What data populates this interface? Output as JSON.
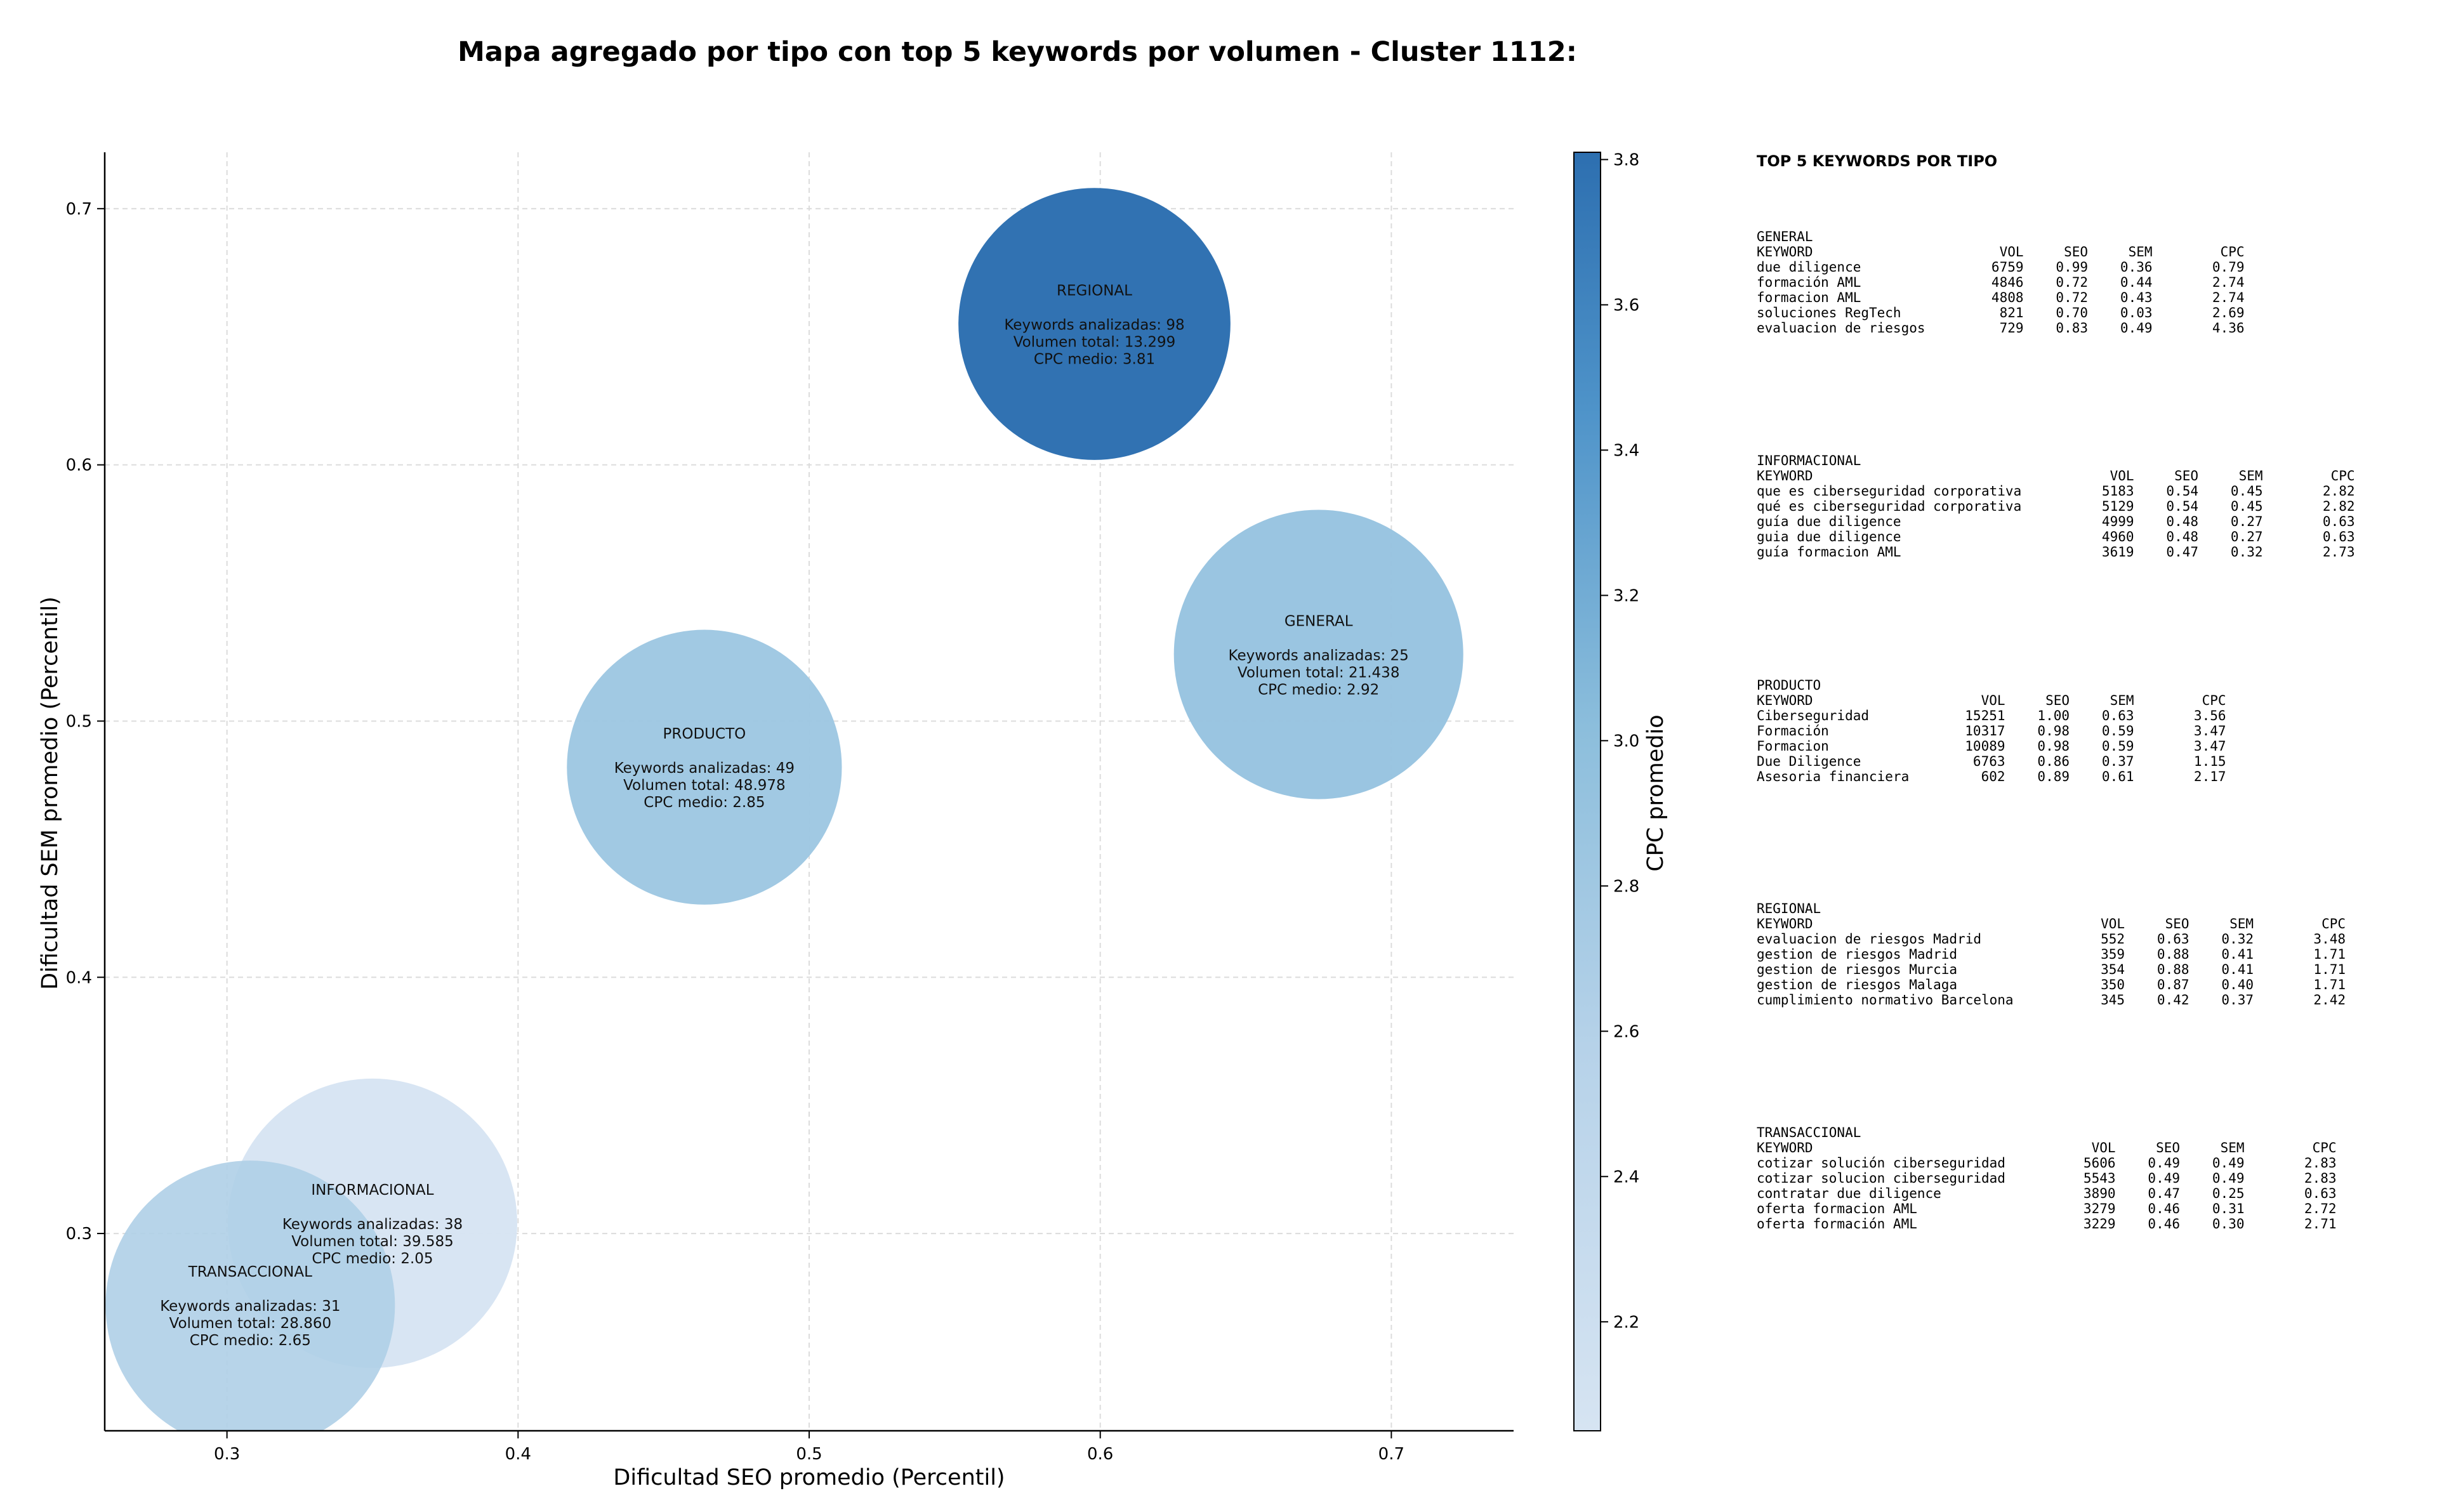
{
  "chart_data": {
    "type": "bubble",
    "title": "Mapa agregado por tipo con top 5 keywords por volumen - Cluster 1112:",
    "xlabel": "Dificultad SEO promedio (Percentil)",
    "ylabel": "Dificultad SEM promedio (Percentil)",
    "xlim": [
      0.258,
      0.742
    ],
    "ylim": [
      0.223,
      0.722
    ],
    "xticks": [
      "0.3",
      "0.4",
      "0.5",
      "0.6",
      "0.7"
    ],
    "yticks": [
      "0.3",
      "0.4",
      "0.5",
      "0.6",
      "0.7"
    ],
    "grid": true,
    "colorbar": {
      "label": "CPC promedio",
      "min": 2.05,
      "max": 3.81,
      "ticks": [
        "2.2",
        "2.4",
        "2.6",
        "2.8",
        "3.0",
        "3.2",
        "3.4",
        "3.6",
        "3.8"
      ],
      "color_low": "#d6e4f2",
      "color_high": "#2d6fb0"
    },
    "bubble_lines": [
      "Keywords analizadas: {k}",
      "Volumen total: {v}",
      "CPC medio: {c}"
    ],
    "bubbles": [
      {
        "name": "INFORMACIONAL",
        "x": 0.35,
        "y": 0.304,
        "keywords": 38,
        "volumen": "39.585",
        "cpc": 2.05,
        "cpc_text": "2.05",
        "size": 1.0,
        "alpha": 0.95
      },
      {
        "name": "TRANSACCIONAL",
        "x": 0.308,
        "y": 0.272,
        "keywords": 31,
        "volumen": "28.860",
        "cpc": 2.65,
        "cpc_text": "2.65",
        "size": 1.0,
        "alpha": 0.9
      },
      {
        "name": "PRODUCTO",
        "x": 0.464,
        "y": 0.482,
        "keywords": 49,
        "volumen": "48.978",
        "cpc": 2.85,
        "cpc_text": "2.85",
        "size": 0.95,
        "alpha": 0.95
      },
      {
        "name": "GENERAL",
        "x": 0.675,
        "y": 0.526,
        "keywords": 25,
        "volumen": "21.438",
        "cpc": 2.92,
        "cpc_text": "2.92",
        "size": 1.0,
        "alpha": 0.95
      },
      {
        "name": "REGIONAL",
        "x": 0.598,
        "y": 0.655,
        "keywords": 98,
        "volumen": "13.299",
        "cpc": 3.81,
        "cpc_text": "3.81",
        "size": 0.94,
        "alpha": 0.98
      }
    ],
    "top5_panel": {
      "title": "TOP 5 KEYWORDS POR TIPO",
      "columns": [
        "KEYWORD",
        "VOL",
        "SEO",
        "SEM",
        "CPC"
      ],
      "groups": [
        {
          "tipo": "GENERAL",
          "rows": [
            [
              "due diligence",
              "6759",
              "0.99",
              "0.36",
              "0.79"
            ],
            [
              "formación AML",
              "4846",
              "0.72",
              "0.44",
              "2.74"
            ],
            [
              "formacion AML",
              "4808",
              "0.72",
              "0.43",
              "2.74"
            ],
            [
              "soluciones RegTech",
              "821",
              "0.70",
              "0.03",
              "2.69"
            ],
            [
              "evaluacion de riesgos",
              "729",
              "0.83",
              "0.49",
              "4.36"
            ]
          ]
        },
        {
          "tipo": "INFORMACIONAL",
          "rows": [
            [
              "que es ciberseguridad corporativa",
              "5183",
              "0.54",
              "0.45",
              "2.82"
            ],
            [
              "qué es ciberseguridad corporativa",
              "5129",
              "0.54",
              "0.45",
              "2.82"
            ],
            [
              "guía due diligence",
              "4999",
              "0.48",
              "0.27",
              "0.63"
            ],
            [
              "guia due diligence",
              "4960",
              "0.48",
              "0.27",
              "0.63"
            ],
            [
              "guía formacion AML",
              "3619",
              "0.47",
              "0.32",
              "2.73"
            ]
          ]
        },
        {
          "tipo": "PRODUCTO",
          "rows": [
            [
              "Ciberseguridad",
              "15251",
              "1.00",
              "0.63",
              "3.56"
            ],
            [
              "Formación",
              "10317",
              "0.98",
              "0.59",
              "3.47"
            ],
            [
              "Formacion",
              "10089",
              "0.98",
              "0.59",
              "3.47"
            ],
            [
              "Due Diligence",
              "6763",
              "0.86",
              "0.37",
              "1.15"
            ],
            [
              "Asesoria financiera",
              "602",
              "0.89",
              "0.61",
              "2.17"
            ]
          ]
        },
        {
          "tipo": "REGIONAL",
          "rows": [
            [
              "evaluacion de riesgos Madrid",
              "552",
              "0.63",
              "0.32",
              "3.48"
            ],
            [
              "gestion de riesgos Madrid",
              "359",
              "0.88",
              "0.41",
              "1.71"
            ],
            [
              "gestion de riesgos Murcia",
              "354",
              "0.88",
              "0.41",
              "1.71"
            ],
            [
              "gestion de riesgos Malaga",
              "350",
              "0.87",
              "0.40",
              "1.71"
            ],
            [
              "cumplimiento normativo Barcelona",
              "345",
              "0.42",
              "0.37",
              "2.42"
            ]
          ]
        },
        {
          "tipo": "TRANSACCIONAL",
          "rows": [
            [
              "cotizar solución ciberseguridad",
              "5606",
              "0.49",
              "0.49",
              "2.83"
            ],
            [
              "cotizar solucion ciberseguridad",
              "5543",
              "0.49",
              "0.49",
              "2.83"
            ],
            [
              "contratar due diligence",
              "3890",
              "0.47",
              "0.25",
              "0.63"
            ],
            [
              "oferta formacion AML",
              "3279",
              "0.46",
              "0.31",
              "2.72"
            ],
            [
              "oferta formación AML",
              "3229",
              "0.46",
              "0.30",
              "2.71"
            ]
          ]
        }
      ]
    }
  }
}
